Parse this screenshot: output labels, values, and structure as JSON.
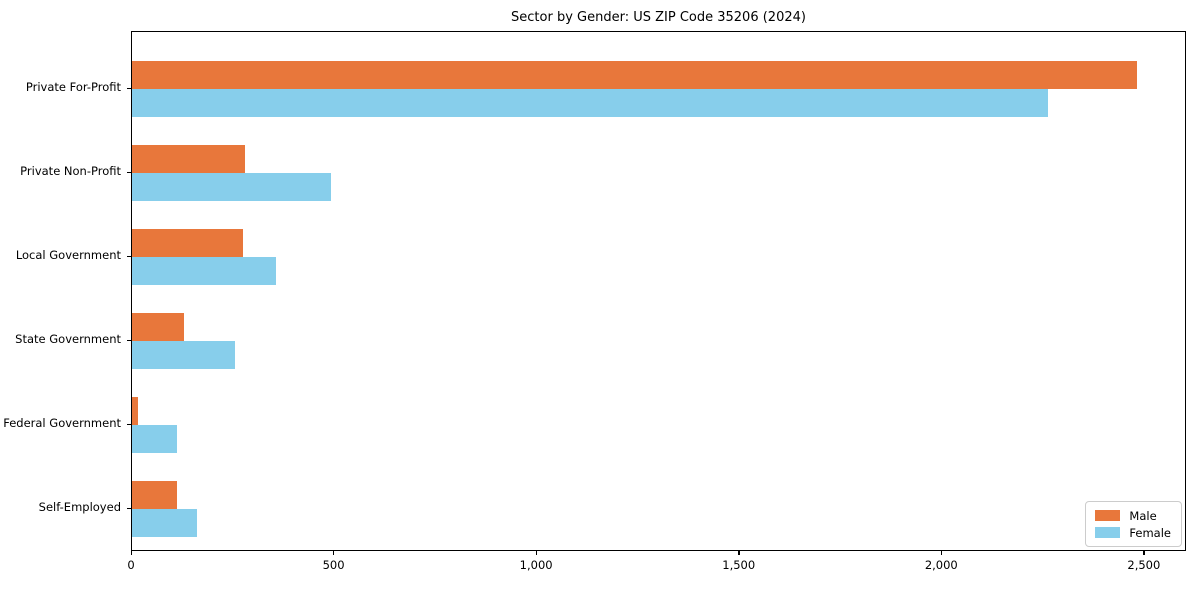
{
  "title": "Sector by Gender: US ZIP Code 35206 (2024)",
  "colors": {
    "male_bar": "#E8773B",
    "female_bar": "#87CEEB",
    "axis": "#000000",
    "legend_border": "#CCCCCC",
    "background": "#FFFFFF"
  },
  "legend": {
    "position": "lower right",
    "entries": [
      {
        "label": "Male",
        "color": "#E8773B"
      },
      {
        "label": "Female",
        "color": "#87CEEB"
      }
    ]
  },
  "chart_data": {
    "type": "bar",
    "orientation": "horizontal",
    "title": "Sector by Gender: US ZIP Code 35206 (2024)",
    "xlabel": "",
    "ylabel": "",
    "grid": false,
    "categories": [
      "Private For-Profit",
      "Private Non-Profit",
      "Local Government",
      "State Government",
      "Federal Government",
      "Self-Employed"
    ],
    "series": [
      {
        "name": "Male",
        "color": "#E8773B",
        "values": [
          2480,
          280,
          275,
          128,
          15,
          110
        ]
      },
      {
        "name": "Female",
        "color": "#87CEEB",
        "values": [
          2260,
          490,
          355,
          255,
          110,
          160
        ]
      }
    ],
    "xlim": [
      0,
      2604
    ],
    "x_ticks": [
      {
        "value": 0,
        "label": "0"
      },
      {
        "value": 500,
        "label": "500"
      },
      {
        "value": 1000,
        "label": "1,000"
      },
      {
        "value": 1500,
        "label": "1,500"
      },
      {
        "value": 2000,
        "label": "2,000"
      },
      {
        "value": 2500,
        "label": "2,500"
      }
    ],
    "legend_position": "lower right"
  }
}
